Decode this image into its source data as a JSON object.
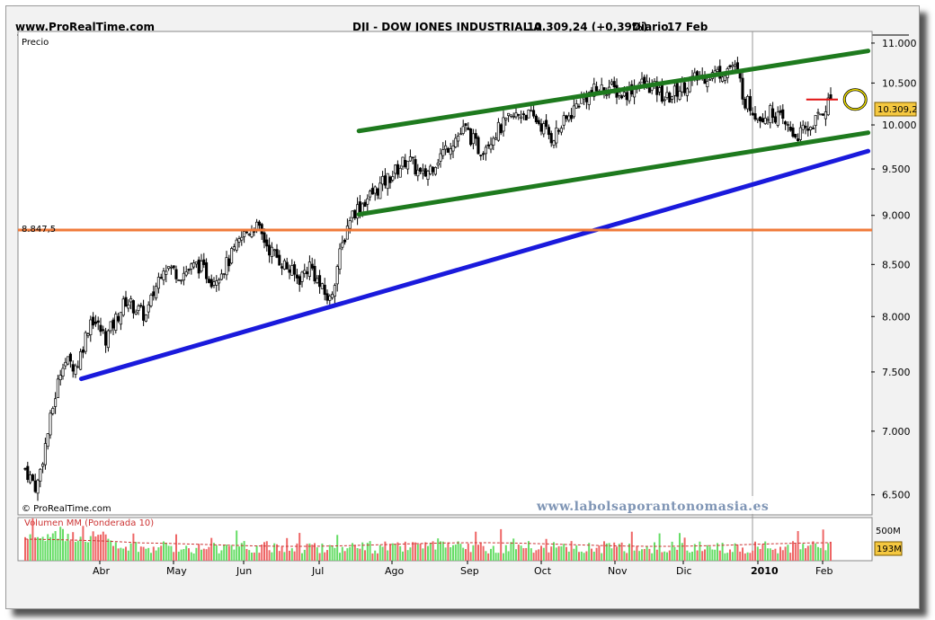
{
  "header": {
    "site": "www.ProRealTime.com",
    "instrument": "DJI - DOW JONES INDUSTRIAL A",
    "quote": "10.309,24 (+0,39%)",
    "period": "Diario",
    "date": "17 Feb"
  },
  "labels": {
    "price_panel": "Precio",
    "copyright": "© ProRealTime.com",
    "watermark": "www.labolsaporantonomasia.es",
    "volume_panel": "Volumen MM (Ponderada 10)",
    "last_price_badge": "10.309,2",
    "volume_badge": "193M",
    "volume_scale": "500M",
    "support_level_label": "8.847,5"
  },
  "colors": {
    "up_channel": "#1e7a1e",
    "support_line": "#1a1adc",
    "horizontal_level": "#f07a3a",
    "resistance_marker": "#e01010",
    "highlight_circle": "#f5e400",
    "price_badge": "#f5c840",
    "volume_up": "#66dd66",
    "volume_down": "#ee6666",
    "volume_ma": "#cc3333"
  },
  "chart_data": {
    "type": "candlestick",
    "title": "DJI - DOW JONES INDUSTRIAL A",
    "ylabel": "Precio",
    "y_ticks": [
      "11.000",
      "10.500",
      "10.000",
      "9.500",
      "9.000",
      "8.500",
      "8.000",
      "7.500",
      "7.000",
      "6.500"
    ],
    "y_tick_values": [
      11000,
      10500,
      10000,
      9500,
      9000,
      8500,
      8000,
      7500,
      7000,
      6500
    ],
    "x_ticks": [
      "Abr",
      "May",
      "Jun",
      "Jul",
      "Ago",
      "Sep",
      "Oct",
      "Nov",
      "Dic",
      "2010",
      "Feb"
    ],
    "ylim": [
      6350,
      11150
    ],
    "grid": false,
    "log_scale": true,
    "close_path": [
      [
        0,
        6700
      ],
      [
        8,
        6550
      ],
      [
        16,
        7000
      ],
      [
        26,
        7600
      ],
      [
        36,
        7550
      ],
      [
        46,
        8000
      ],
      [
        56,
        7800
      ],
      [
        70,
        8150
      ],
      [
        84,
        8000
      ],
      [
        96,
        8500
      ],
      [
        108,
        8400
      ],
      [
        120,
        8500
      ],
      [
        130,
        8350
      ],
      [
        140,
        8500
      ],
      [
        152,
        8800
      ],
      [
        160,
        8900
      ],
      [
        170,
        8650
      ],
      [
        180,
        8500
      ],
      [
        190,
        8350
      ],
      [
        198,
        8500
      ],
      [
        206,
        8250
      ],
      [
        212,
        8150
      ],
      [
        218,
        8550
      ],
      [
        226,
        9000
      ],
      [
        236,
        9150
      ],
      [
        246,
        9300
      ],
      [
        256,
        9450
      ],
      [
        266,
        9620
      ],
      [
        276,
        9400
      ],
      [
        286,
        9600
      ],
      [
        296,
        9800
      ],
      [
        306,
        9950
      ],
      [
        316,
        9700
      ],
      [
        326,
        9900
      ],
      [
        336,
        10050
      ],
      [
        346,
        10150
      ],
      [
        356,
        10050
      ],
      [
        366,
        9850
      ],
      [
        376,
        10050
      ],
      [
        386,
        10300
      ],
      [
        396,
        10400
      ],
      [
        406,
        10450
      ],
      [
        416,
        10350
      ],
      [
        426,
        10500
      ],
      [
        436,
        10450
      ],
      [
        446,
        10300
      ],
      [
        456,
        10450
      ],
      [
        466,
        10550
      ],
      [
        476,
        10600
      ],
      [
        486,
        10650
      ],
      [
        492,
        10720
      ],
      [
        496,
        10580
      ],
      [
        500,
        10300
      ],
      [
        510,
        10100
      ],
      [
        520,
        10150
      ],
      [
        528,
        10000
      ],
      [
        536,
        9870
      ],
      [
        544,
        9950
      ],
      [
        552,
        10100
      ],
      [
        560,
        10309
      ]
    ],
    "volume": {
      "label": "Volumen MM (Ponderada 10)",
      "scale_label": "500M",
      "last_value": "193M"
    },
    "annotations": [
      {
        "type": "trendline",
        "name": "canal-superior",
        "color": "up_channel",
        "from": [
          232,
          9930
        ],
        "to": [
          586,
          10900
        ]
      },
      {
        "type": "trendline",
        "name": "canal-inferior",
        "color": "up_channel",
        "from": [
          232,
          9010
        ],
        "to": [
          586,
          9910
        ]
      },
      {
        "type": "trendline",
        "name": "soporte",
        "color": "support_line",
        "from": [
          39,
          7440
        ],
        "to": [
          586,
          9700
        ]
      },
      {
        "type": "horizontal",
        "value": 8847.5,
        "label": "8.847,5",
        "color": "horizontal_level"
      },
      {
        "type": "resistance",
        "value": 10300,
        "color": "resistance_marker"
      }
    ]
  }
}
